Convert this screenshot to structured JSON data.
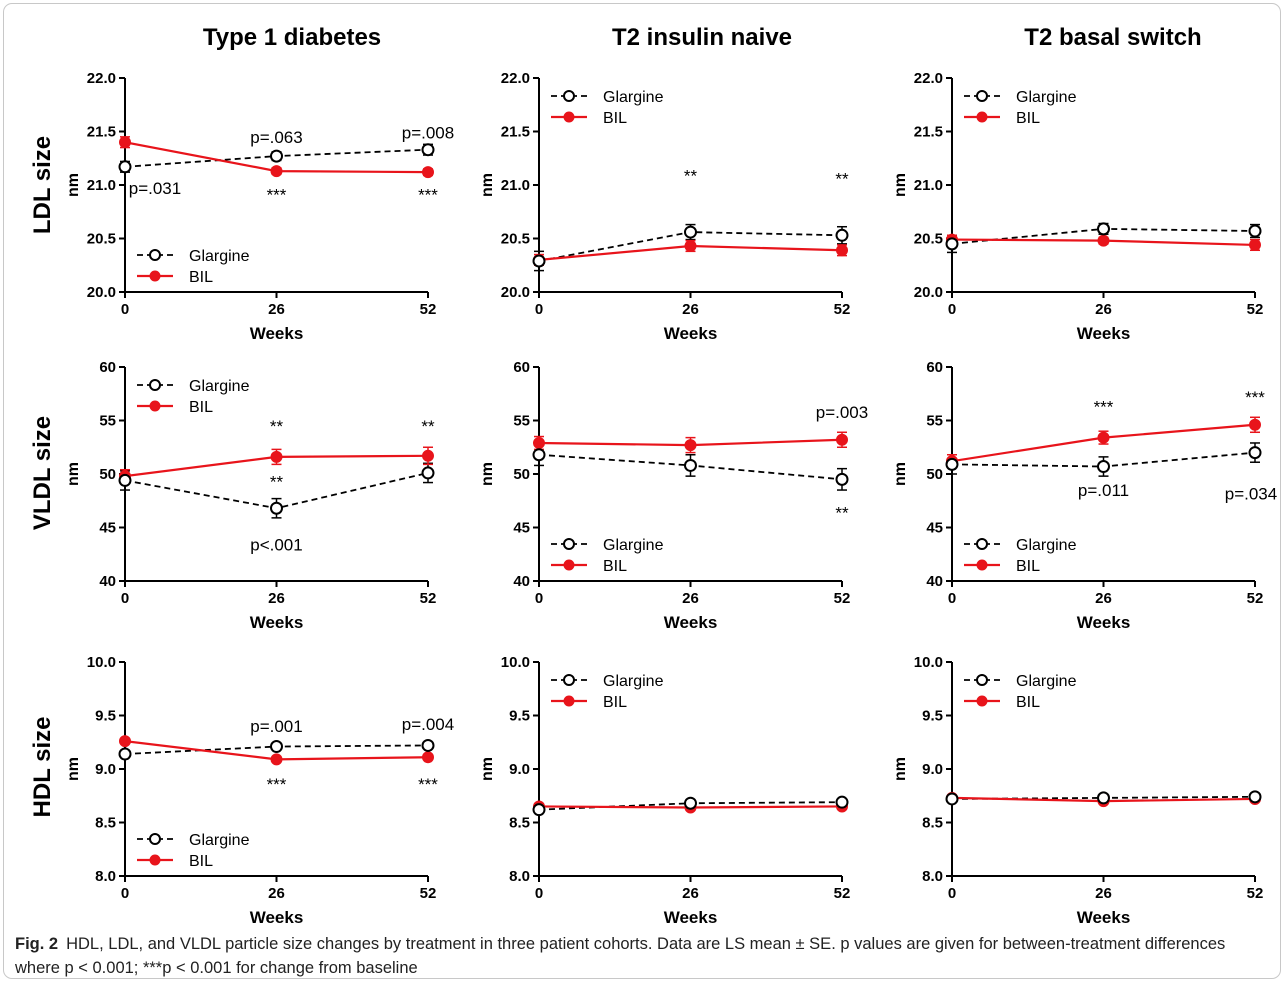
{
  "columns": [
    "Type 1 diabetes",
    "T2 insulin naive",
    "T2 basal switch"
  ],
  "rows": [
    "LDL size",
    "VLDL size",
    "HDL size"
  ],
  "caption": {
    "label": "Fig. 2",
    "text": "HDL, LDL, and VLDL particle size changes by treatment in three patient cohorts. Data are LS mean ± SE. p values are given for between-treatment differences where p < 0.001; ***p < 0.001 for change from baseline"
  },
  "colors": {
    "glargine": "#000000",
    "bil": "#e8141b"
  },
  "chart_data": [
    {
      "type": "line",
      "panel": "LDL size / Type 1 diabetes",
      "xlabel": "Weeks",
      "ylabel": "nm",
      "x": [
        0,
        26,
        52
      ],
      "xticks": [
        "0",
        "26",
        "52"
      ],
      "ylim": [
        20.0,
        22.0
      ],
      "yticks": [
        "20.0",
        "20.5",
        "21.0",
        "21.5",
        "22.0"
      ],
      "legend": "bottom-left",
      "series": [
        {
          "name": "Glargine",
          "values": [
            21.17,
            21.27,
            21.33
          ],
          "err": [
            0.05,
            0.04,
            0.05
          ]
        },
        {
          "name": "BIL",
          "values": [
            21.4,
            21.13,
            21.12
          ],
          "err": [
            0.05,
            0.03,
            0.03
          ]
        }
      ],
      "annotations": [
        {
          "text": "p=.031",
          "x": 0,
          "y": 20.97
        },
        {
          "text": "p=.063",
          "x": 26,
          "y": 21.45
        },
        {
          "text": "p=.008",
          "x": 52,
          "y": 21.49
        },
        {
          "text": "***",
          "x": 26,
          "y": 20.91
        },
        {
          "text": "***",
          "x": 52,
          "y": 20.91
        }
      ]
    },
    {
      "type": "line",
      "panel": "LDL size / T2 insulin naive",
      "xlabel": "Weeks",
      "ylabel": "nm",
      "x": [
        0,
        26,
        52
      ],
      "xticks": [
        "0",
        "26",
        "52"
      ],
      "ylim": [
        20.0,
        22.0
      ],
      "yticks": [
        "20.0",
        "20.5",
        "21.0",
        "21.5",
        "22.0"
      ],
      "legend": "top-left",
      "series": [
        {
          "name": "Glargine",
          "values": [
            20.29,
            20.56,
            20.53
          ],
          "err": [
            0.09,
            0.07,
            0.08
          ]
        },
        {
          "name": "BIL",
          "values": [
            20.3,
            20.43,
            20.39
          ],
          "err": [
            0.05,
            0.05,
            0.05
          ]
        }
      ],
      "annotations": [
        {
          "text": "**",
          "x": 26,
          "y": 21.09
        },
        {
          "text": "**",
          "x": 52,
          "y": 21.06
        }
      ]
    },
    {
      "type": "line",
      "panel": "LDL size / T2 basal switch",
      "xlabel": "Weeks",
      "ylabel": "nm",
      "x": [
        0,
        26,
        52
      ],
      "xticks": [
        "0",
        "26",
        "52"
      ],
      "ylim": [
        20.0,
        22.0
      ],
      "yticks": [
        "20.0",
        "20.5",
        "21.0",
        "21.5",
        "22.0"
      ],
      "legend": "top-left",
      "series": [
        {
          "name": "Glargine",
          "values": [
            20.45,
            20.59,
            20.57
          ],
          "err": [
            0.08,
            0.05,
            0.06
          ]
        },
        {
          "name": "BIL",
          "values": [
            20.49,
            20.48,
            20.44
          ],
          "err": [
            0.04,
            0.03,
            0.05
          ]
        }
      ],
      "annotations": []
    },
    {
      "type": "line",
      "panel": "VLDL size / Type 1 diabetes",
      "xlabel": "Weeks",
      "ylabel": "nm",
      "x": [
        0,
        26,
        52
      ],
      "xticks": [
        "0",
        "26",
        "52"
      ],
      "ylim": [
        40,
        60
      ],
      "yticks": [
        "40",
        "45",
        "50",
        "55",
        "60"
      ],
      "legend": "top-left",
      "series": [
        {
          "name": "Glargine",
          "values": [
            49.4,
            46.8,
            50.1
          ],
          "err": [
            0.9,
            0.9,
            0.9
          ]
        },
        {
          "name": "BIL",
          "values": [
            49.8,
            51.6,
            51.7
          ],
          "err": [
            0.6,
            0.7,
            0.8
          ]
        }
      ],
      "annotations": [
        {
          "text": "**",
          "x": 26,
          "y": 54.5
        },
        {
          "text": "**",
          "x": 52,
          "y": 54.5
        },
        {
          "text": "**",
          "x": 26,
          "y": 49.3
        },
        {
          "text": "p<.001",
          "x": 26,
          "y": 43.4
        }
      ]
    },
    {
      "type": "line",
      "panel": "VLDL size / T2 insulin naive",
      "xlabel": "Weeks",
      "ylabel": "nm",
      "x": [
        0,
        26,
        52
      ],
      "xticks": [
        "0",
        "26",
        "52"
      ],
      "ylim": [
        40,
        60
      ],
      "yticks": [
        "40",
        "45",
        "50",
        "55",
        "60"
      ],
      "legend": "bottom-left",
      "series": [
        {
          "name": "Glargine",
          "values": [
            51.8,
            50.8,
            49.5
          ],
          "err": [
            1.0,
            1.0,
            1.0
          ]
        },
        {
          "name": "BIL",
          "values": [
            52.9,
            52.7,
            53.2
          ],
          "err": [
            0.6,
            0.7,
            0.7
          ]
        }
      ],
      "annotations": [
        {
          "text": "p=.003",
          "x": 52,
          "y": 55.8
        },
        {
          "text": "**",
          "x": 52,
          "y": 46.4
        }
      ]
    },
    {
      "type": "line",
      "panel": "VLDL size / T2 basal switch",
      "xlabel": "Weeks",
      "ylabel": "nm",
      "x": [
        0,
        26,
        52
      ],
      "xticks": [
        "0",
        "26",
        "52"
      ],
      "ylim": [
        40,
        60
      ],
      "yticks": [
        "40",
        "45",
        "50",
        "55",
        "60"
      ],
      "legend": "bottom-left",
      "series": [
        {
          "name": "Glargine",
          "values": [
            50.9,
            50.7,
            52.0
          ],
          "err": [
            0.9,
            0.9,
            0.9
          ]
        },
        {
          "name": "BIL",
          "values": [
            51.2,
            53.4,
            54.6
          ],
          "err": [
            0.6,
            0.6,
            0.7
          ]
        }
      ],
      "annotations": [
        {
          "text": "***",
          "x": 26,
          "y": 56.3
        },
        {
          "text": "***",
          "x": 52,
          "y": 57.2
        },
        {
          "text": "p=.011",
          "x": 26,
          "y": 48.5
        },
        {
          "text": "p=.034",
          "x": 52,
          "y": 48.2
        }
      ]
    },
    {
      "type": "line",
      "panel": "HDL size / Type 1 diabetes",
      "xlabel": "Weeks",
      "ylabel": "nm",
      "x": [
        0,
        26,
        52
      ],
      "xticks": [
        "0",
        "26",
        "52"
      ],
      "ylim": [
        8.0,
        10.0
      ],
      "yticks": [
        "8.0",
        "8.5",
        "9.0",
        "9.5",
        "10.0"
      ],
      "legend": "bottom-left",
      "series": [
        {
          "name": "Glargine",
          "values": [
            9.14,
            9.21,
            9.22
          ],
          "err": [
            0.03,
            0.02,
            0.02
          ]
        },
        {
          "name": "BIL",
          "values": [
            9.26,
            9.09,
            9.11
          ],
          "err": [
            0.02,
            0.02,
            0.02
          ]
        }
      ],
      "annotations": [
        {
          "text": "p=.001",
          "x": 26,
          "y": 9.4
        },
        {
          "text": "p=.004",
          "x": 52,
          "y": 9.42
        },
        {
          "text": "***",
          "x": 26,
          "y": 8.86
        },
        {
          "text": "***",
          "x": 52,
          "y": 8.86
        }
      ]
    },
    {
      "type": "line",
      "panel": "HDL size / T2 insulin naive",
      "xlabel": "Weeks",
      "ylabel": "nm",
      "x": [
        0,
        26,
        52
      ],
      "xticks": [
        "0",
        "26",
        "52"
      ],
      "ylim": [
        8.0,
        10.0
      ],
      "yticks": [
        "8.0",
        "8.5",
        "9.0",
        "9.5",
        "10.0"
      ],
      "legend": "top-left",
      "series": [
        {
          "name": "Glargine",
          "values": [
            8.62,
            8.68,
            8.69
          ],
          "err": [
            0.02,
            0.02,
            0.02
          ]
        },
        {
          "name": "BIL",
          "values": [
            8.65,
            8.64,
            8.65
          ],
          "err": [
            0.01,
            0.01,
            0.01
          ]
        }
      ],
      "annotations": []
    },
    {
      "type": "line",
      "panel": "HDL size / T2 basal switch",
      "xlabel": "Weeks",
      "ylabel": "nm",
      "x": [
        0,
        26,
        52
      ],
      "xticks": [
        "0",
        "26",
        "52"
      ],
      "ylim": [
        8.0,
        10.0
      ],
      "yticks": [
        "8.0",
        "8.5",
        "9.0",
        "9.5",
        "10.0"
      ],
      "legend": "top-left",
      "series": [
        {
          "name": "Glargine",
          "values": [
            8.72,
            8.73,
            8.74
          ],
          "err": [
            0.02,
            0.02,
            0.02
          ]
        },
        {
          "name": "BIL",
          "values": [
            8.73,
            8.7,
            8.72
          ],
          "err": [
            0.01,
            0.01,
            0.01
          ]
        }
      ],
      "annotations": []
    }
  ]
}
